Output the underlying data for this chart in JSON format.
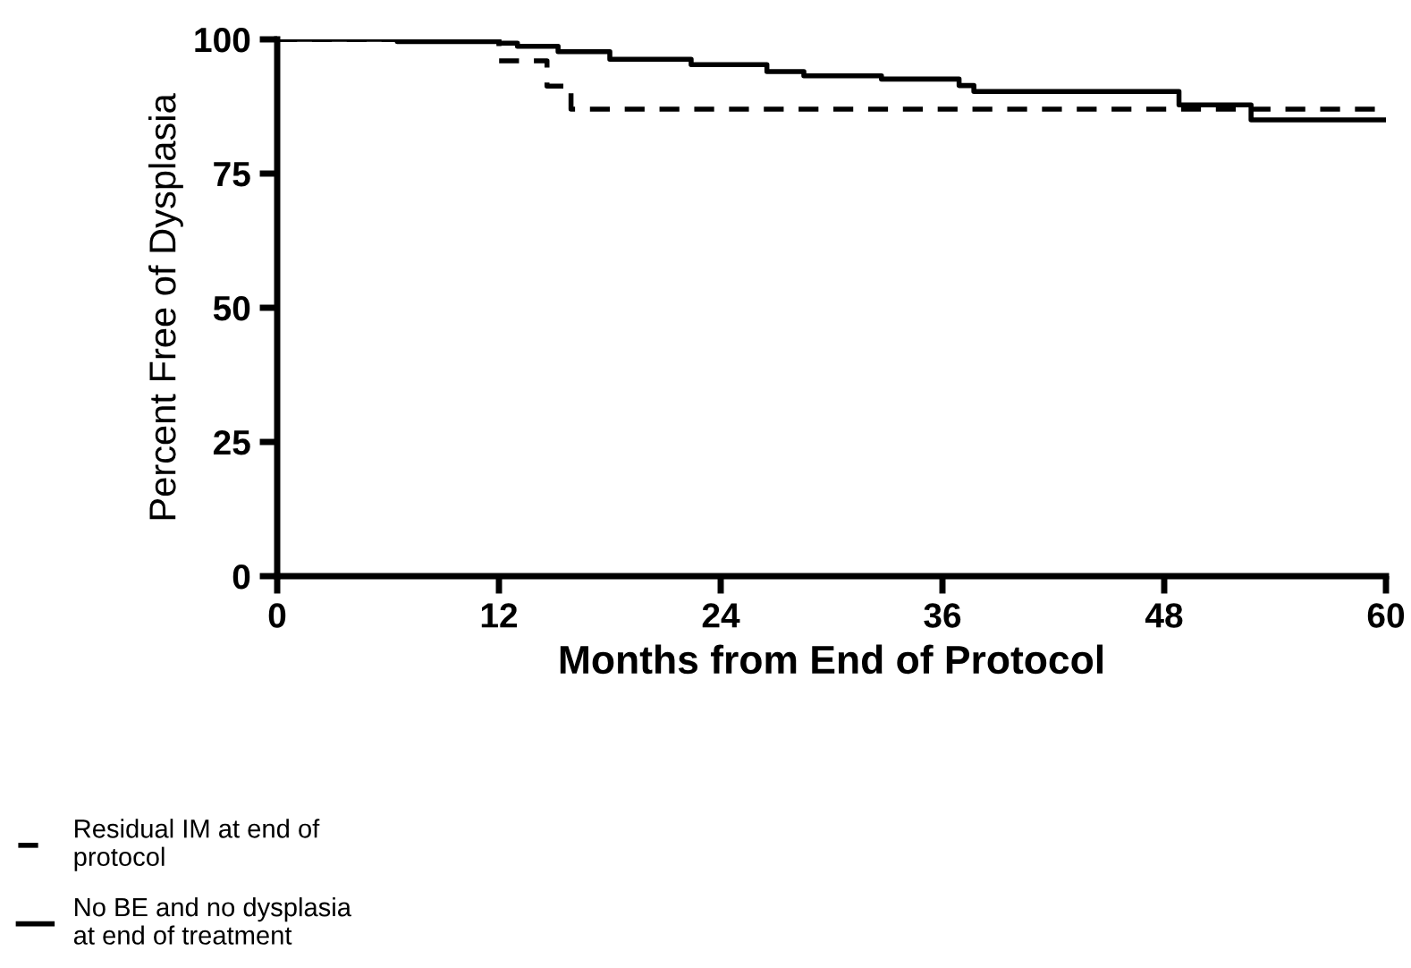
{
  "chart_data": {
    "type": "step",
    "xlabel": "Months from End of Protocol",
    "ylabel": "Percent Free of Dysplasia",
    "xlim": [
      0,
      60
    ],
    "xticks": [
      0,
      12,
      24,
      36,
      48,
      60
    ],
    "ylim": [
      0,
      100
    ],
    "yticks": [
      0,
      25,
      50,
      75,
      100
    ],
    "grid": false,
    "legend": "bottom left",
    "series": [
      {
        "name": "Residual IM at end of\nprotocol",
        "color": "#000000",
        "line_style": "dashed",
        "x": [
          0,
          12,
          14.6,
          15.9,
          60
        ],
        "values": [
          100,
          96,
          91.3,
          87,
          87
        ]
      },
      {
        "name": "No BE and no dysplasia\nat end of treatment",
        "color": "#000000",
        "line_style": "solid",
        "x": [
          0,
          6.5,
          12,
          13,
          15.2,
          18,
          22.4,
          26.5,
          28.5,
          32.7,
          36.9,
          37.7,
          48.8,
          52.7,
          60
        ],
        "values": [
          100,
          99.6,
          99.3,
          98.7,
          97.7,
          96.3,
          95.3,
          94,
          93.2,
          92.6,
          91.4,
          90.3,
          87.8,
          85,
          85
        ]
      }
    ]
  }
}
